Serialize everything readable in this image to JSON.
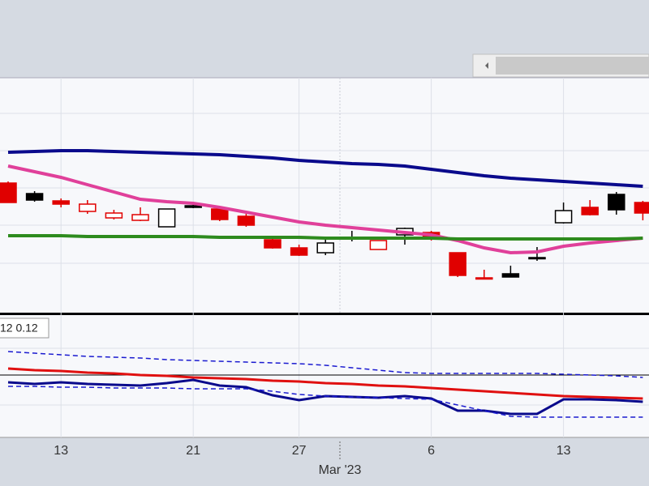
{
  "chart_data": [
    {
      "type": "candlestick",
      "categories": [
        null,
        null,
        "13",
        null,
        null,
        null,
        null,
        "21",
        null,
        null,
        null,
        "27",
        null,
        null,
        null,
        null,
        "6",
        null,
        null,
        null,
        null,
        "13",
        null,
        null,
        null
      ],
      "period_label": "Mar '23",
      "open": [
        160,
        147,
        138,
        125,
        117,
        114,
        106,
        132,
        128,
        119,
        90,
        80,
        74,
        93,
        78,
        96,
        99,
        74,
        43,
        48,
        68,
        111,
        130,
        146,
        136
      ],
      "high": [
        162,
        150,
        141,
        139,
        127,
        130,
        128,
        136,
        130,
        122,
        95,
        84,
        90,
        101,
        89,
        105,
        101,
        74,
        53,
        58,
        81,
        136,
        139,
        149,
        138
      ],
      "low": [
        136,
        137,
        130,
        122,
        115,
        113,
        106,
        129,
        113,
        106,
        79,
        70,
        71,
        88,
        78,
        84,
        89,
        44,
        42,
        44,
        64,
        110,
        120,
        121,
        114
      ],
      "close": [
        136,
        139,
        134,
        134,
        123,
        121,
        128,
        130,
        115,
        108,
        80,
        71,
        86,
        93,
        89,
        104,
        93,
        46,
        42,
        44,
        68,
        126,
        121,
        127,
        123
      ],
      "candle_colors": [
        "#e00000",
        "#000000",
        "#e00000",
        "#e00000",
        "#e00000",
        "#e00000",
        "#000000",
        "#000000",
        "#e00000",
        "#e00000",
        "#e00000",
        "#e00000",
        "#000000",
        "#000000",
        "#e00000",
        "#000000",
        "#e00000",
        "#e00000",
        "#e00000",
        "#000000",
        "#000000",
        "#000000",
        "#e00000",
        "#000000",
        "#e00000"
      ],
      "candle_filled": [
        true,
        true,
        true,
        false,
        false,
        false,
        false,
        true,
        true,
        true,
        true,
        true,
        false,
        true,
        false,
        false,
        true,
        true,
        true,
        true,
        true,
        false,
        true,
        true,
        true
      ],
      "overlays": [
        {
          "color": "#0a0a8c",
          "values": [
            198,
            199,
            200,
            200,
            199,
            198,
            197,
            196,
            195,
            193,
            191,
            188,
            186,
            184,
            183,
            181,
            177,
            173,
            169,
            166,
            164,
            162,
            160,
            158,
            156
          ]
        },
        {
          "color": "#e0409a",
          "values": [
            181,
            174,
            167,
            158,
            149,
            140,
            137,
            135,
            130,
            124,
            118,
            112,
            108,
            105,
            102,
            99,
            96,
            89,
            80,
            74,
            75,
            82,
            86,
            89,
            92
          ]
        },
        {
          "color": "#2e8b1e",
          "values": [
            95,
            95,
            95,
            94,
            94,
            94,
            94,
            94,
            93,
            93,
            93,
            93,
            92,
            92,
            92,
            92,
            92,
            91,
            91,
            91,
            91,
            91,
            91,
            91,
            92
          ]
        }
      ],
      "ylim": [
        0,
        290
      ]
    },
    {
      "type": "line",
      "legend_text": "12 0.12",
      "reference": {
        "value": 77,
        "color": "#000000"
      },
      "series": [
        {
          "color": "#e01010",
          "dashed": false,
          "values": [
            85,
            83,
            82,
            80,
            79,
            77,
            76,
            74,
            73,
            72,
            70,
            69,
            67,
            66,
            64,
            63,
            61,
            59,
            57,
            55,
            53,
            51,
            50,
            49,
            48
          ]
        },
        {
          "color": "#0a0a8c",
          "dashed": false,
          "values": [
            68,
            66,
            68,
            66,
            65,
            64,
            67,
            71,
            64,
            62,
            52,
            46,
            51,
            50,
            49,
            51,
            48,
            33,
            33,
            29,
            29,
            47,
            47,
            46,
            44
          ]
        },
        {
          "color": "#1a1ad0",
          "dashed": true,
          "values": [
            106,
            104,
            102,
            100,
            99,
            98,
            96,
            95,
            94,
            93,
            92,
            91,
            89,
            86,
            83,
            80,
            79,
            79,
            79,
            79,
            79,
            78,
            77,
            76,
            74
          ]
        },
        {
          "color": "#1a1ad0",
          "dashed": true,
          "values": [
            63,
            63,
            62,
            62,
            61,
            61,
            61,
            60,
            60,
            60,
            57,
            53,
            51,
            50,
            49,
            48,
            47,
            40,
            33,
            26,
            25,
            25,
            25,
            25,
            25
          ]
        }
      ],
      "ylim": [
        0,
        151
      ]
    }
  ]
}
